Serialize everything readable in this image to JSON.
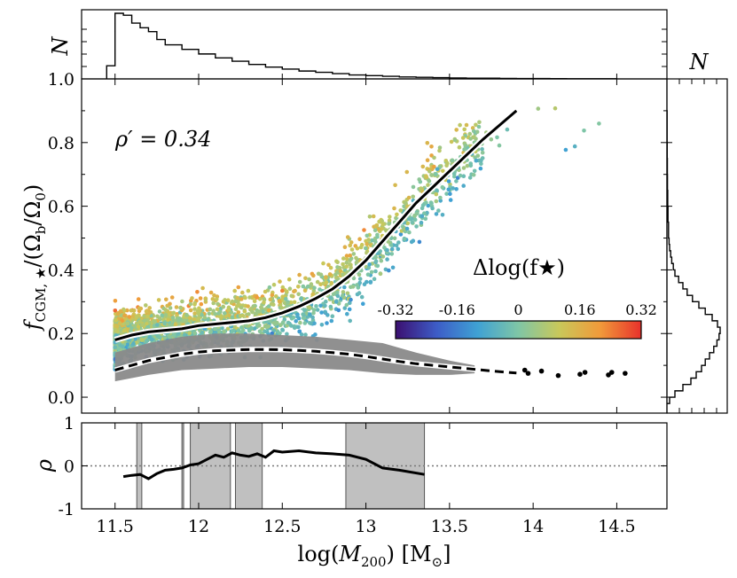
{
  "chart_data": [
    {
      "panel": "main",
      "type": "scatter",
      "xlabel_main": "log(",
      "xlabel_var": "M",
      "xlabel_sub": "200",
      "xlabel_unit": ") [M",
      "xlabel_sun": "⊙",
      "xlabel_close": "]",
      "ylabel_var": "f",
      "ylabel_sub": "CGM, ★",
      "ylabel_rest": "/(Ω",
      "ylabel_b": "b",
      "ylabel_mid": "/Ω",
      "ylabel_0": "0",
      "ylabel_end": ")",
      "xlim": [
        11.3,
        14.8
      ],
      "ylim": [
        -0.05,
        1.0
      ],
      "xticks": [
        11.5,
        12,
        12.5,
        13,
        13.5,
        14,
        14.5
      ],
      "xtick_labels": [
        "11.5",
        "12",
        "12.5",
        "13",
        "13.5",
        "14",
        "14.5"
      ],
      "yticks": [
        0.0,
        0.2,
        0.4,
        0.6,
        0.8,
        1.0
      ],
      "ytick_labels": [
        "0.0",
        "0.2",
        "0.4",
        "0.6",
        "0.8",
        "1.0"
      ],
      "annotation": "ρ′ = 0.34",
      "colorbar": {
        "label": "Δlog(f★)",
        "range": [
          -0.32,
          0.32
        ],
        "ticks": [
          "-0.32",
          "-0.16",
          "0",
          "0.16",
          "0.32"
        ],
        "colors": [
          "#3b0f70",
          "#3d5cc7",
          "#3fa1d4",
          "#7fc6a6",
          "#c9c85a",
          "#f19a3a",
          "#e8312b"
        ]
      },
      "median_cgm_star": {
        "x": [
          11.5,
          11.6,
          11.7,
          11.8,
          11.9,
          12.0,
          12.1,
          12.2,
          12.3,
          12.4,
          12.5,
          12.6,
          12.7,
          12.8,
          12.9,
          13.0,
          13.1,
          13.2,
          13.3,
          13.4,
          13.5,
          13.6,
          13.7,
          13.8,
          13.9
        ],
        "y": [
          0.18,
          0.195,
          0.205,
          0.21,
          0.215,
          0.225,
          0.23,
          0.235,
          0.24,
          0.25,
          0.265,
          0.285,
          0.31,
          0.34,
          0.38,
          0.43,
          0.49,
          0.55,
          0.61,
          0.66,
          0.71,
          0.76,
          0.81,
          0.855,
          0.9
        ]
      },
      "median_cgm": {
        "x": [
          11.5,
          11.6,
          11.7,
          11.8,
          11.9,
          12.0,
          12.1,
          12.2,
          12.3,
          12.4,
          12.5,
          12.6,
          12.7,
          12.8,
          12.9,
          13.0,
          13.1,
          13.2,
          13.3,
          13.4,
          13.5,
          13.6,
          13.7,
          13.8,
          13.9
        ],
        "y": [
          0.085,
          0.1,
          0.115,
          0.125,
          0.135,
          0.142,
          0.146,
          0.148,
          0.15,
          0.15,
          0.149,
          0.147,
          0.144,
          0.14,
          0.135,
          0.128,
          0.12,
          0.112,
          0.105,
          0.1,
          0.095,
          0.09,
          0.085,
          0.08,
          0.076
        ]
      },
      "cgm_band": {
        "x": [
          11.5,
          11.7,
          11.9,
          12.1,
          12.3,
          12.5,
          12.7,
          12.9,
          13.1,
          13.3,
          13.5,
          13.65
        ],
        "low": [
          0.05,
          0.07,
          0.085,
          0.09,
          0.095,
          0.095,
          0.09,
          0.085,
          0.075,
          0.07,
          0.07,
          0.075
        ],
        "high": [
          0.14,
          0.17,
          0.19,
          0.2,
          0.2,
          0.195,
          0.19,
          0.18,
          0.17,
          0.14,
          0.115,
          0.1
        ]
      },
      "cgm_outliers": {
        "x": [
          13.95,
          13.97,
          14.05,
          14.15,
          14.28,
          14.31,
          14.45,
          14.47,
          14.55
        ],
        "y": [
          0.085,
          0.075,
          0.082,
          0.068,
          0.072,
          0.078,
          0.07,
          0.078,
          0.075
        ]
      }
    },
    {
      "panel": "bottom",
      "type": "line",
      "ylabel": "ρ",
      "ylim": [
        -1,
        1
      ],
      "yticks": [
        -1,
        0,
        1
      ],
      "ytick_labels": [
        "-1",
        "0",
        "1"
      ],
      "x": [
        11.55,
        11.6,
        11.65,
        11.7,
        11.75,
        11.8,
        11.85,
        11.9,
        11.95,
        12.0,
        12.05,
        12.1,
        12.15,
        12.2,
        12.25,
        12.3,
        12.35,
        12.4,
        12.45,
        12.5,
        12.6,
        12.7,
        12.8,
        12.9,
        13.0,
        13.1,
        13.2,
        13.35
      ],
      "y": [
        -0.25,
        -0.22,
        -0.2,
        -0.3,
        -0.18,
        -0.1,
        -0.08,
        -0.05,
        0.02,
        0.05,
        0.15,
        0.25,
        0.2,
        0.3,
        0.25,
        0.22,
        0.28,
        0.2,
        0.35,
        0.32,
        0.35,
        0.3,
        0.28,
        0.25,
        0.15,
        -0.05,
        -0.1,
        -0.2
      ],
      "shaded_regions": [
        [
          11.63,
          11.66
        ],
        [
          11.9,
          11.91
        ],
        [
          11.95,
          12.19
        ],
        [
          12.22,
          12.38
        ],
        [
          12.88,
          13.35
        ]
      ]
    },
    {
      "panel": "top_histogram",
      "type": "bar",
      "ylabel": "N",
      "bin_edges": [
        11.45,
        11.5,
        11.55,
        11.6,
        11.65,
        11.7,
        11.75,
        11.8,
        11.9,
        12.0,
        12.1,
        12.2,
        12.3,
        12.4,
        12.5,
        12.6,
        12.7,
        12.8,
        12.9,
        13.0,
        13.1,
        13.2,
        13.3,
        13.4,
        13.5,
        13.6,
        13.7,
        13.8,
        13.9,
        14.0,
        14.1,
        14.2,
        14.3,
        14.4,
        14.5
      ],
      "counts": [
        0.2,
        1.0,
        0.97,
        0.85,
        0.78,
        0.72,
        0.6,
        0.52,
        0.45,
        0.38,
        0.32,
        0.27,
        0.22,
        0.18,
        0.15,
        0.12,
        0.1,
        0.08,
        0.06,
        0.05,
        0.04,
        0.03,
        0.025,
        0.02,
        0.015,
        0.01,
        0.01,
        0.008,
        0.006,
        0.005,
        0.004,
        0.003,
        0.002,
        0.002
      ]
    },
    {
      "panel": "right_histogram",
      "type": "bar",
      "xlabel": "N",
      "bin_edges": [
        -0.02,
        0.0,
        0.02,
        0.04,
        0.06,
        0.08,
        0.1,
        0.12,
        0.14,
        0.16,
        0.18,
        0.2,
        0.22,
        0.24,
        0.26,
        0.28,
        0.3,
        0.32,
        0.34,
        0.36,
        0.38,
        0.4,
        0.42,
        0.44,
        0.46,
        0.48,
        0.5,
        0.55,
        0.6,
        0.65,
        0.7,
        0.75,
        0.8,
        0.9
      ],
      "counts": [
        0.05,
        0.15,
        0.3,
        0.45,
        0.55,
        0.65,
        0.72,
        0.8,
        0.88,
        0.94,
        0.98,
        1.0,
        0.95,
        0.85,
        0.72,
        0.6,
        0.48,
        0.38,
        0.3,
        0.22,
        0.15,
        0.12,
        0.09,
        0.07,
        0.05,
        0.04,
        0.03,
        0.02,
        0.015,
        0.01,
        0.008,
        0.005,
        0.003
      ]
    }
  ]
}
